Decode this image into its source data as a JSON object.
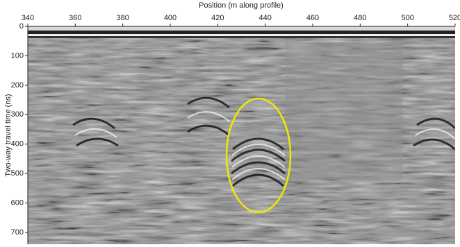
{
  "chart_data": {
    "type": "radargram",
    "x_label": "Position (m along profile)",
    "y_label": "Two-way travel time (ns)",
    "xlim": [
      340,
      520
    ],
    "xticks": [
      340,
      360,
      380,
      400,
      420,
      440,
      460,
      480,
      500,
      520
    ],
    "ylim": [
      0,
      740
    ],
    "yticks": [
      0,
      100,
      200,
      300,
      400,
      500,
      600,
      700
    ],
    "y_inverted": true,
    "x_axis_position": "top"
  }
}
